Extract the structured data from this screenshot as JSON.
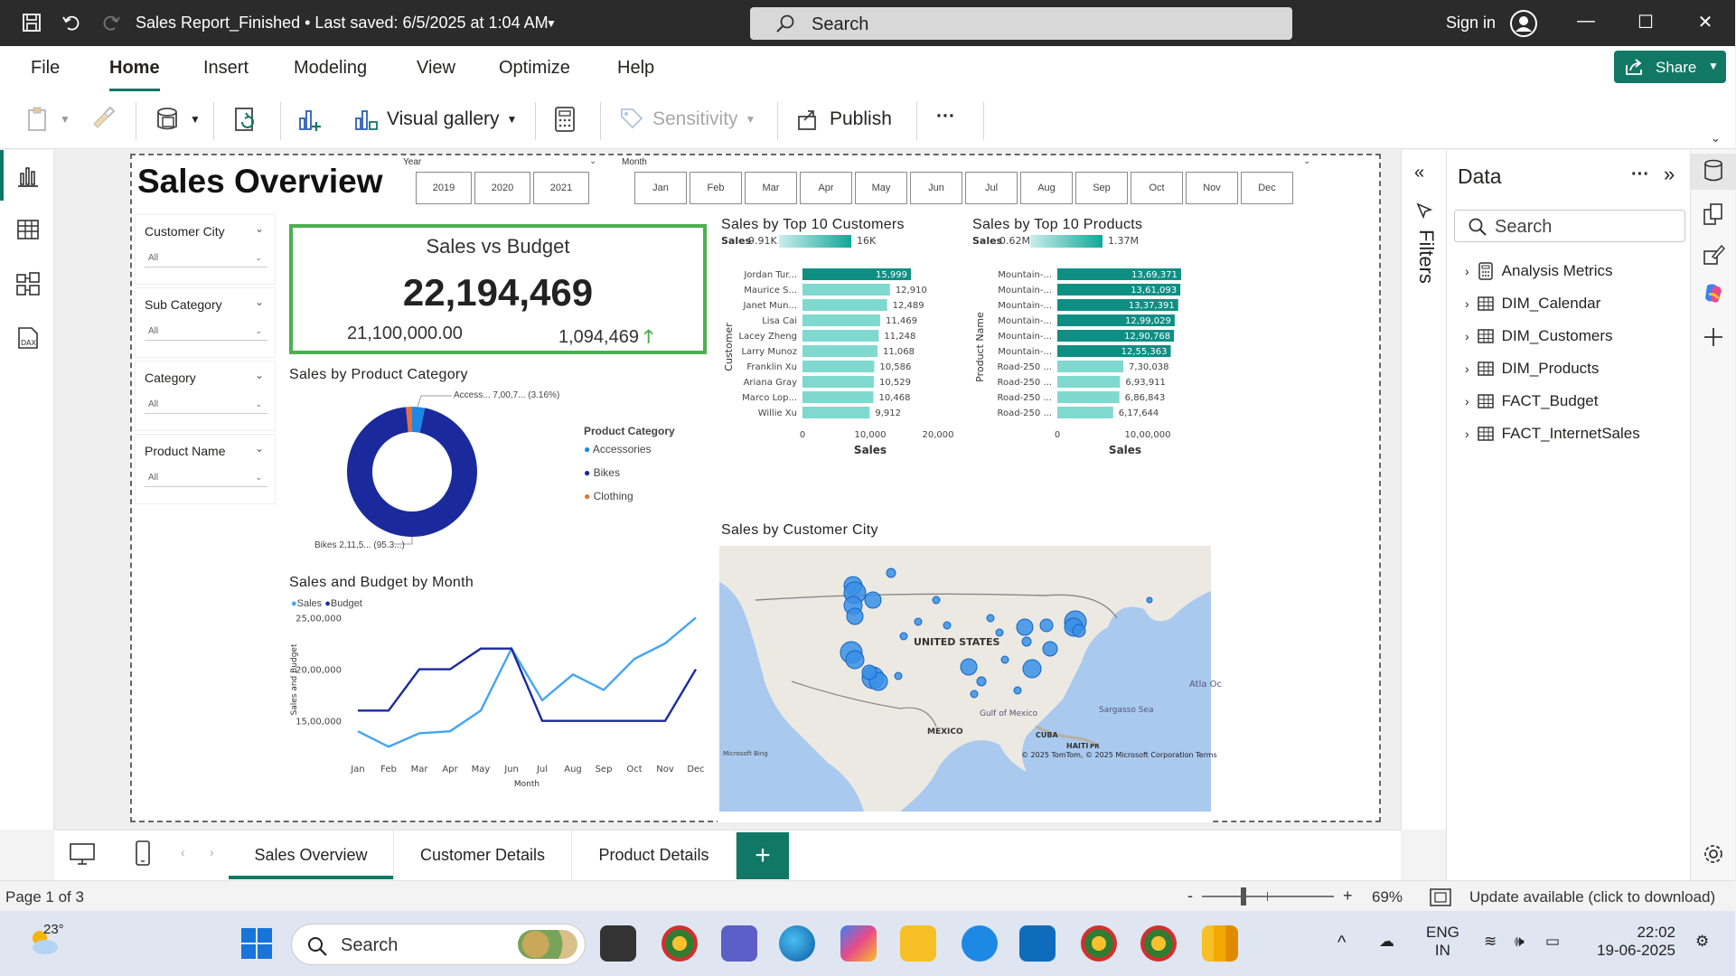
{
  "titlebar": {
    "doc_title": "Sales Report_Finished  •  Last saved: 6/5/2025 at 1:04 AM",
    "search_placeholder": "Search",
    "sign_in": "Sign in"
  },
  "menu": {
    "tabs": [
      "File",
      "Home",
      "Insert",
      "Modeling",
      "View",
      "Optimize",
      "Help"
    ],
    "active": "Home",
    "share": "Share"
  },
  "toolbar": {
    "visual_gallery": "Visual gallery",
    "sensitivity": "Sensitivity",
    "publish": "Publish",
    "more": "···"
  },
  "report": {
    "title": "Sales Overview",
    "year_slicer": {
      "label": "Year",
      "options": [
        "2019",
        "2020",
        "2021"
      ]
    },
    "month_slicer": {
      "label": "Month",
      "options": [
        "Jan",
        "Feb",
        "Mar",
        "Apr",
        "May",
        "Jun",
        "Jul",
        "Aug",
        "Sep",
        "Oct",
        "Nov",
        "Dec"
      ]
    },
    "filters": [
      {
        "label": "Customer City",
        "value": "All"
      },
      {
        "label": "Sub Category",
        "value": "All"
      },
      {
        "label": "Category",
        "value": "All"
      },
      {
        "label": "Product Name",
        "value": "All"
      }
    ],
    "kpi": {
      "title": "Sales vs Budget",
      "value": "22,194,469",
      "budget": "21,100,000.00",
      "delta": "1,094,469"
    },
    "donut": {
      "title": "Sales by Product Category",
      "legend_title": "Product Category",
      "label_top": "Access... 7,00,7... (3.16%)",
      "label_bottom": "Bikes 2,11,5... (95.3...)",
      "colors": {
        "Accessories": "#1e88e5",
        "Bikes": "#1a2a9c",
        "Clothing": "#e8703a"
      }
    },
    "customers_chart": {
      "title": "Sales by Top 10 Customers",
      "legend_label": "Sales",
      "legend_min": "9.91K",
      "legend_max": "16K",
      "ylabel": "Customer",
      "xlabel": "Sales",
      "x_ticks": [
        "0",
        "10,000",
        "20,000"
      ]
    },
    "products_chart": {
      "title": "Sales by Top 10 Products",
      "legend_label": "Sales",
      "legend_min": "0.62M",
      "legend_max": "1.37M",
      "ylabel": "Product Name",
      "xlabel": "Sales",
      "x_ticks": [
        "0",
        "10,00,000"
      ]
    },
    "line_chart": {
      "title": "Sales and Budget by Month",
      "legend": [
        "Sales",
        "Budget"
      ],
      "ylabel": "Sales and Budget",
      "xlabel": "Month",
      "y_ticks": [
        "25,00,000",
        "20,00,000",
        "15,00,000"
      ]
    },
    "map": {
      "title": "Sales by Customer City",
      "labels": [
        "UNITED STATES",
        "MEXICO",
        "Gulf of Mexico",
        "Sargasso Sea",
        "CUBA",
        "HAITI",
        "PR",
        "Atla Oc"
      ],
      "attribution": "© 2025 TomTom, © 2025 Microsoft Corporation  Terms",
      "bing": "Microsoft Bing"
    }
  },
  "chart_data": [
    {
      "type": "bar",
      "title": "Sales by Top 10 Customers",
      "categories": [
        "Jordan Tur...",
        "Maurice S...",
        "Janet Mun...",
        "Lisa Cai",
        "Lacey Zheng",
        "Larry Munoz",
        "Franklin Xu",
        "Ariana Gray",
        "Marco Lop...",
        "Willie Xu"
      ],
      "value_labels": [
        "15,999",
        "12,910",
        "12,489",
        "11,469",
        "11,248",
        "11,068",
        "10,586",
        "10,529",
        "10,468",
        "9,912"
      ],
      "values": [
        15999,
        12910,
        12489,
        11469,
        11248,
        11068,
        10586,
        10529,
        10468,
        9912
      ],
      "xlabel": "Sales",
      "ylabel": "Customer",
      "xlim": [
        0,
        20000
      ]
    },
    {
      "type": "bar",
      "title": "Sales by Top 10 Products",
      "categories": [
        "Mountain-...",
        "Mountain-...",
        "Mountain-...",
        "Mountain-...",
        "Mountain-...",
        "Mountain-...",
        "Road-250 ...",
        "Road-250 ...",
        "Road-250 ...",
        "Road-250 ..."
      ],
      "value_labels": [
        "13,69,371",
        "13,61,093",
        "13,37,391",
        "12,99,029",
        "12,90,768",
        "12,55,363",
        "7,30,038",
        "6,93,911",
        "6,86,843",
        "6,17,644"
      ],
      "values": [
        1369371,
        1361093,
        1337391,
        1299029,
        1290768,
        1255363,
        730038,
        693911,
        686843,
        617644
      ],
      "xlabel": "Sales",
      "ylabel": "Product Name",
      "xlim": [
        0,
        1500000
      ]
    },
    {
      "type": "pie",
      "title": "Sales by Product Category",
      "categories": [
        "Accessories",
        "Bikes",
        "Clothing"
      ],
      "values": [
        3.16,
        95.3,
        1.54
      ]
    },
    {
      "type": "line",
      "title": "Sales and Budget by Month",
      "categories": [
        "Jan",
        "Feb",
        "Mar",
        "Apr",
        "May",
        "Jun",
        "Jul",
        "Aug",
        "Sep",
        "Oct",
        "Nov",
        "Dec"
      ],
      "series": [
        {
          "name": "Sales",
          "values": [
            1400000,
            1250000,
            1380000,
            1400000,
            1600000,
            2200000,
            1700000,
            1950000,
            1800000,
            2100000,
            2250000,
            2500000
          ]
        },
        {
          "name": "Budget",
          "values": [
            1600000,
            1600000,
            2000000,
            2000000,
            2200000,
            2200000,
            1500000,
            1500000,
            1500000,
            1500000,
            1500000,
            2000000
          ]
        }
      ],
      "ylim": [
        1200000,
        2600000
      ],
      "xlabel": "Month",
      "ylabel": "Sales and Budget"
    }
  ],
  "pages": {
    "tabs": [
      "Sales Overview",
      "Customer Details",
      "Product Details"
    ],
    "active": "Sales Overview",
    "add": "+"
  },
  "filters_pane": {
    "label": "Filters"
  },
  "data_pane": {
    "title": "Data",
    "search_placeholder": "Search",
    "items": [
      "Analysis Metrics",
      "DIM_Calendar",
      "DIM_Customers",
      "DIM_Products",
      "FACT_Budget",
      "FACT_InternetSales"
    ]
  },
  "status": {
    "page": "Page 1 of 3",
    "zoom": "69%",
    "update": "Update available (click to download)"
  },
  "taskbar": {
    "weather": "23°",
    "search": "Search",
    "lang": "ENG",
    "region": "IN",
    "time": "22:02",
    "date": "19-06-2025"
  }
}
